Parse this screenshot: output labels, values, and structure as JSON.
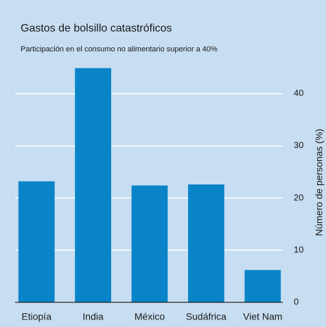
{
  "chart_data": {
    "type": "bar",
    "title": "Gastos de bolsillo catastróficos",
    "subtitle": "Participación en el consumo no alimentario superior a 40%",
    "y_label": "Número de personas (%)",
    "categories": [
      "Etiopía",
      "India",
      "México",
      "Sudáfrica",
      "Viet Nam"
    ],
    "values": [
      23.2,
      44.9,
      22.4,
      22.6,
      6.2
    ],
    "color": "#0a84c8",
    "ylim": [
      0,
      46
    ],
    "yticks": [
      0,
      10,
      20,
      30,
      40
    ],
    "grid": true,
    "y_axis_side": "right"
  }
}
